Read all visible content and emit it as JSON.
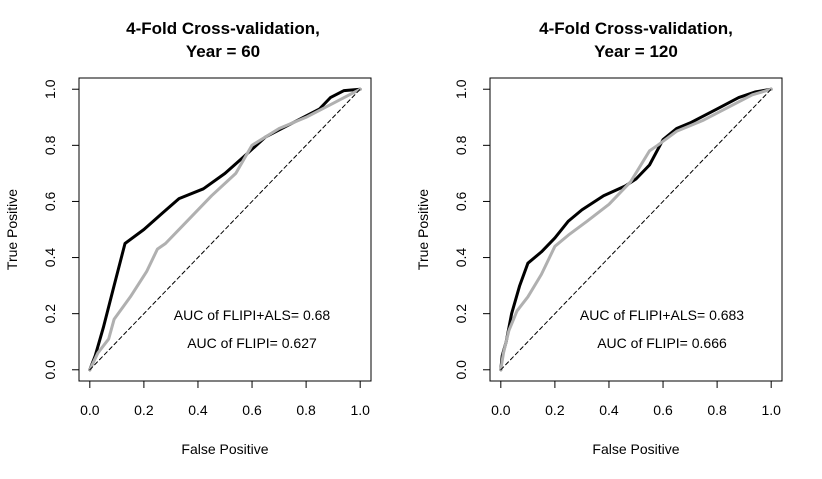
{
  "chart_data": [
    {
      "type": "line",
      "title_lines": [
        "4-Fold Cross-validation,",
        "Year =  60"
      ],
      "xlabel": "False Positive",
      "ylabel": "True Positive",
      "xlim": [
        0,
        1
      ],
      "ylim": [
        0,
        1
      ],
      "x_ticks": [
        "0.0",
        "0.2",
        "0.4",
        "0.6",
        "0.8",
        "1.0"
      ],
      "y_ticks": [
        "0.0",
        "0.2",
        "0.4",
        "0.6",
        "0.8",
        "1.0"
      ],
      "grid": false,
      "annotations": [
        "AUC of FLIPI+ALS= 0.68",
        "AUC of FLIPI= 0.627"
      ],
      "series": [
        {
          "color": "#000000",
          "x": [
            0,
            0.02,
            0.05,
            0.09,
            0.13,
            0.2,
            0.27,
            0.33,
            0.42,
            0.5,
            0.57,
            0.65,
            0.75,
            0.85,
            0.89,
            0.94,
            1.0
          ],
          "y": [
            0,
            0.05,
            0.15,
            0.3,
            0.45,
            0.5,
            0.56,
            0.61,
            0.645,
            0.7,
            0.76,
            0.83,
            0.88,
            0.93,
            0.97,
            0.995,
            1.0
          ]
        },
        {
          "color": "#b0b0b0",
          "x": [
            0,
            0.03,
            0.07,
            0.09,
            0.15,
            0.21,
            0.25,
            0.28,
            0.35,
            0.45,
            0.54,
            0.6,
            0.7,
            0.8,
            0.9,
            0.96,
            1.0
          ],
          "y": [
            0,
            0.06,
            0.11,
            0.18,
            0.26,
            0.35,
            0.43,
            0.45,
            0.52,
            0.62,
            0.7,
            0.8,
            0.86,
            0.9,
            0.95,
            0.98,
            1.0
          ]
        },
        {
          "color": "#000000",
          "dashed": true,
          "x": [
            0,
            1
          ],
          "y": [
            0,
            1
          ]
        }
      ]
    },
    {
      "type": "line",
      "title_lines": [
        "4-Fold Cross-validation,",
        "Year =  120"
      ],
      "xlabel": "False Positive",
      "ylabel": "True Positive",
      "xlim": [
        0,
        1
      ],
      "ylim": [
        0,
        1
      ],
      "x_ticks": [
        "0.0",
        "0.2",
        "0.4",
        "0.6",
        "0.8",
        "1.0"
      ],
      "y_ticks": [
        "0.0",
        "0.2",
        "0.4",
        "0.6",
        "0.8",
        "1.0"
      ],
      "grid": false,
      "annotations": [
        "AUC of FLIPI+ALS= 0.683",
        "AUC of FLIPI= 0.666"
      ],
      "series": [
        {
          "color": "#000000",
          "x": [
            0,
            0.005,
            0.02,
            0.04,
            0.07,
            0.1,
            0.15,
            0.2,
            0.25,
            0.3,
            0.38,
            0.46,
            0.5,
            0.55,
            0.6,
            0.65,
            0.7,
            0.8,
            0.88,
            0.94,
            1.0
          ],
          "y": [
            0,
            0.05,
            0.1,
            0.2,
            0.3,
            0.38,
            0.42,
            0.47,
            0.53,
            0.57,
            0.62,
            0.655,
            0.68,
            0.73,
            0.82,
            0.86,
            0.88,
            0.93,
            0.97,
            0.99,
            1.0
          ]
        },
        {
          "color": "#b0b0b0",
          "x": [
            0,
            0.01,
            0.03,
            0.06,
            0.1,
            0.15,
            0.2,
            0.25,
            0.32,
            0.4,
            0.48,
            0.55,
            0.58,
            0.65,
            0.75,
            0.85,
            0.93,
            1.0
          ],
          "y": [
            0,
            0.06,
            0.14,
            0.21,
            0.26,
            0.34,
            0.44,
            0.48,
            0.53,
            0.59,
            0.67,
            0.78,
            0.8,
            0.85,
            0.89,
            0.94,
            0.98,
            1.0
          ]
        },
        {
          "color": "#000000",
          "dashed": true,
          "x": [
            0,
            1
          ],
          "y": [
            0,
            1
          ]
        }
      ]
    }
  ]
}
